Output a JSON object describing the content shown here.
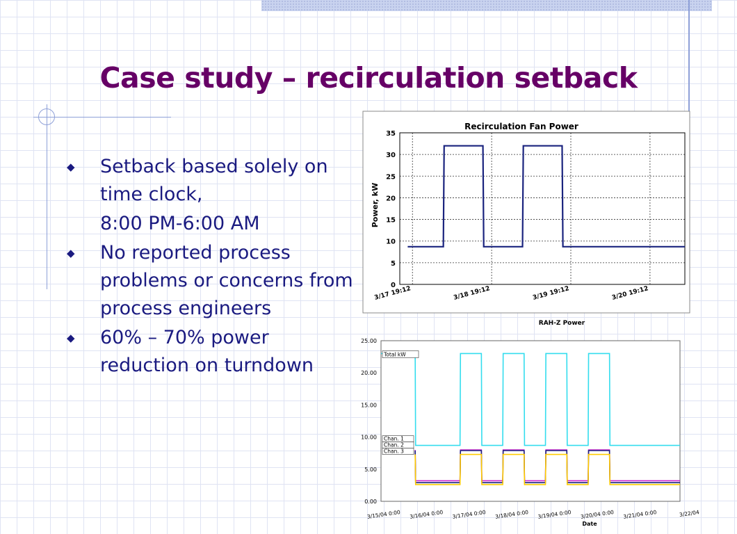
{
  "slide": {
    "title": "Case study – recirculation setback",
    "bullets": [
      {
        "text": "Setback based solely on time clock,",
        "marker": true
      },
      {
        "text": "8:00 PM-6:00 AM",
        "marker": false
      },
      {
        "text": "No reported process problems or concerns from process engineers",
        "marker": true
      },
      {
        "text": "60% – 70% power reduction on turndown",
        "marker": true
      }
    ]
  },
  "chart_data": [
    {
      "type": "line",
      "title": "Recirculation Fan Power",
      "ylabel": "Power, kW",
      "xlabel": "",
      "ylim": [
        0,
        35
      ],
      "yticks": [
        "0",
        "5",
        "10",
        "15",
        "20",
        "25",
        "30",
        "35"
      ],
      "xticks": [
        "3/17 19:12",
        "3/18 19:12",
        "3/19 19:12",
        "3/20 19:12"
      ],
      "grid": true,
      "series": [
        {
          "color": "#1a237e",
          "x": [
            0,
            0.45,
            0.46,
            0.95,
            0.96,
            1.45,
            1.46,
            1.95,
            1.96,
            3.5
          ],
          "values": [
            8.7,
            8.7,
            32,
            32,
            8.7,
            8.7,
            32,
            32,
            8.7,
            8.7
          ]
        }
      ]
    },
    {
      "type": "line",
      "title": "RAH-Z Power",
      "xlabel": "Date",
      "ylabel": "",
      "ylim": [
        0,
        25
      ],
      "yticks": [
        "0.00",
        "5.00",
        "10.00",
        "15.00",
        "20.00",
        "25.00"
      ],
      "xticks": [
        "3/15/04 0:00",
        "3/16/04 0:00",
        "3/17/04 0:00",
        "3/18/04 0:00",
        "3/19/04 0:00",
        "3/20/04 0:00",
        "3/21/04 0:00",
        "3/22/04"
      ],
      "series": [
        {
          "name": "Total kW",
          "color": "#33ddee",
          "x": [
            0,
            0.8,
            0.81,
            1.85,
            1.86,
            2.35,
            2.36,
            2.85,
            2.86,
            3.35,
            3.36,
            3.85,
            3.86,
            4.35,
            4.36,
            4.85,
            4.86,
            5.35,
            5.36,
            7
          ],
          "values": [
            23,
            23,
            8.7,
            8.7,
            23,
            23,
            8.7,
            8.7,
            23,
            23,
            8.7,
            8.7,
            23,
            23,
            8.7,
            8.7,
            23,
            23,
            8.7,
            8.7
          ]
        },
        {
          "name": "Chan. 1",
          "color": "#cc22cc",
          "x": [
            0.8,
            0.81,
            1.85,
            1.86,
            2.35,
            2.36,
            2.85,
            2.86,
            3.35,
            3.36,
            3.85,
            3.86,
            4.35,
            4.36,
            4.85,
            4.86,
            5.35,
            5.36,
            7
          ],
          "values": [
            8,
            3.2,
            3.2,
            8,
            8,
            3.2,
            3.2,
            8,
            8,
            3.2,
            3.2,
            8,
            8,
            3.2,
            3.2,
            8,
            8,
            3.2,
            3.2
          ]
        },
        {
          "name": "Chan. 2",
          "color": "#1a237e",
          "x": [
            0.8,
            0.81,
            1.85,
            1.86,
            2.35,
            2.36,
            2.85,
            2.86,
            3.35,
            3.36,
            3.85,
            3.86,
            4.35,
            4.36,
            4.85,
            4.86,
            5.35,
            5.36,
            7
          ],
          "values": [
            7.9,
            2.9,
            2.9,
            7.9,
            7.9,
            2.9,
            2.9,
            7.9,
            7.9,
            2.9,
            2.9,
            7.9,
            7.9,
            2.9,
            2.9,
            7.9,
            7.9,
            2.9,
            2.9
          ]
        },
        {
          "name": "Chan. 3",
          "color": "#ffcc00",
          "x": [
            0.8,
            0.81,
            1.85,
            1.86,
            2.35,
            2.36,
            2.85,
            2.86,
            3.35,
            3.36,
            3.85,
            3.86,
            4.35,
            4.36,
            4.85,
            4.86,
            5.35,
            5.36,
            7
          ],
          "values": [
            7.3,
            2.6,
            2.6,
            7.3,
            7.3,
            2.6,
            2.6,
            7.3,
            7.3,
            2.6,
            2.6,
            7.3,
            7.3,
            2.6,
            2.6,
            7.3,
            7.3,
            2.6,
            2.6
          ]
        }
      ]
    }
  ]
}
